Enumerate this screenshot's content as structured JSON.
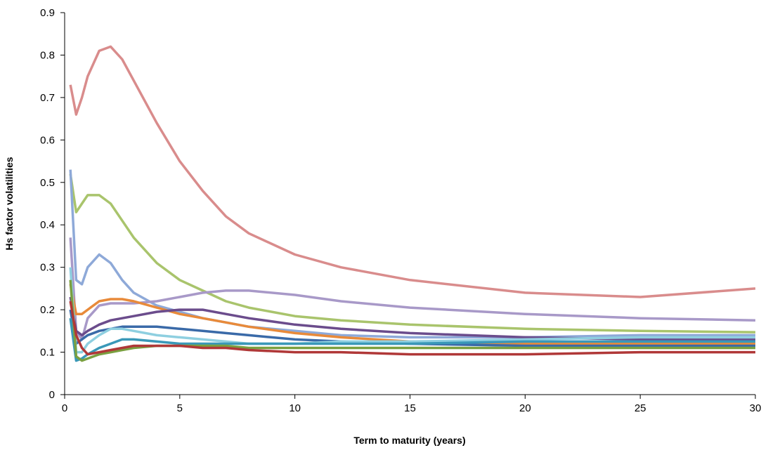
{
  "chart_data": {
    "type": "line",
    "x_label": "Term to maturity (years)",
    "y_label": "Hs factor volatilities",
    "x": [
      0.25,
      0.5,
      0.75,
      1,
      1.5,
      2,
      2.5,
      3,
      4,
      5,
      6,
      7,
      8,
      10,
      12,
      15,
      20,
      25,
      30
    ],
    "xlim": [
      0,
      30
    ],
    "xticks": [
      0,
      5,
      10,
      15,
      20,
      25,
      30
    ],
    "ylim": [
      0,
      0.9
    ],
    "yticks": [
      0,
      0.1,
      0.2,
      0.3,
      0.4,
      0.5,
      0.6,
      0.7,
      0.8,
      0.9
    ],
    "grid": false,
    "series": [
      {
        "color": "#d98c8c",
        "values": [
          0.73,
          0.66,
          0.7,
          0.75,
          0.81,
          0.82,
          0.79,
          0.74,
          0.64,
          0.55,
          0.48,
          0.42,
          0.38,
          0.33,
          0.3,
          0.27,
          0.24,
          0.23,
          0.25
        ]
      },
      {
        "color": "#a9c46c",
        "values": [
          0.52,
          0.43,
          0.45,
          0.47,
          0.47,
          0.45,
          0.41,
          0.37,
          0.31,
          0.27,
          0.245,
          0.22,
          0.205,
          0.185,
          0.175,
          0.165,
          0.155,
          0.15,
          0.147
        ]
      },
      {
        "color": "#8ea9d8",
        "values": [
          0.53,
          0.27,
          0.26,
          0.3,
          0.33,
          0.31,
          0.27,
          0.24,
          0.21,
          0.195,
          0.18,
          0.17,
          0.16,
          0.15,
          0.14,
          0.135,
          0.135,
          0.14,
          0.14
        ]
      },
      {
        "color": "#a899c8",
        "values": [
          0.37,
          0.15,
          0.13,
          0.18,
          0.21,
          0.215,
          0.215,
          0.215,
          0.22,
          0.23,
          0.24,
          0.245,
          0.245,
          0.235,
          0.22,
          0.205,
          0.19,
          0.18,
          0.175
        ]
      },
      {
        "color": "#e88a3a",
        "values": [
          0.26,
          0.19,
          0.19,
          0.2,
          0.22,
          0.225,
          0.225,
          0.22,
          0.205,
          0.19,
          0.18,
          0.17,
          0.16,
          0.145,
          0.135,
          0.125,
          0.12,
          0.12,
          0.12
        ]
      },
      {
        "color": "#6b4c8c",
        "values": [
          0.23,
          0.15,
          0.14,
          0.15,
          0.165,
          0.175,
          0.18,
          0.185,
          0.195,
          0.2,
          0.2,
          0.19,
          0.18,
          0.165,
          0.155,
          0.145,
          0.135,
          0.13,
          0.13
        ]
      },
      {
        "color": "#3a6aa8",
        "values": [
          0.2,
          0.12,
          0.13,
          0.14,
          0.15,
          0.155,
          0.16,
          0.16,
          0.16,
          0.155,
          0.15,
          0.145,
          0.14,
          0.13,
          0.125,
          0.12,
          0.115,
          0.115,
          0.115
        ]
      },
      {
        "color": "#8ecfe0",
        "values": [
          0.3,
          0.1,
          0.1,
          0.12,
          0.14,
          0.155,
          0.155,
          0.15,
          0.14,
          0.135,
          0.13,
          0.125,
          0.12,
          0.12,
          0.125,
          0.125,
          0.13,
          0.135,
          0.135
        ]
      },
      {
        "color": "#3a98b8",
        "values": [
          0.18,
          0.08,
          0.085,
          0.095,
          0.11,
          0.12,
          0.13,
          0.13,
          0.125,
          0.12,
          0.12,
          0.12,
          0.12,
          0.12,
          0.12,
          0.12,
          0.125,
          0.125,
          0.125
        ]
      },
      {
        "color": "#7aa040",
        "values": [
          0.27,
          0.09,
          0.08,
          0.085,
          0.095,
          0.1,
          0.105,
          0.11,
          0.115,
          0.115,
          0.115,
          0.115,
          0.11,
          0.11,
          0.11,
          0.11,
          0.11,
          0.11,
          0.11
        ]
      },
      {
        "color": "#b03838",
        "values": [
          0.22,
          0.14,
          0.11,
          0.095,
          0.1,
          0.105,
          0.11,
          0.115,
          0.115,
          0.115,
          0.11,
          0.11,
          0.105,
          0.1,
          0.1,
          0.095,
          0.095,
          0.1,
          0.1
        ]
      }
    ]
  }
}
